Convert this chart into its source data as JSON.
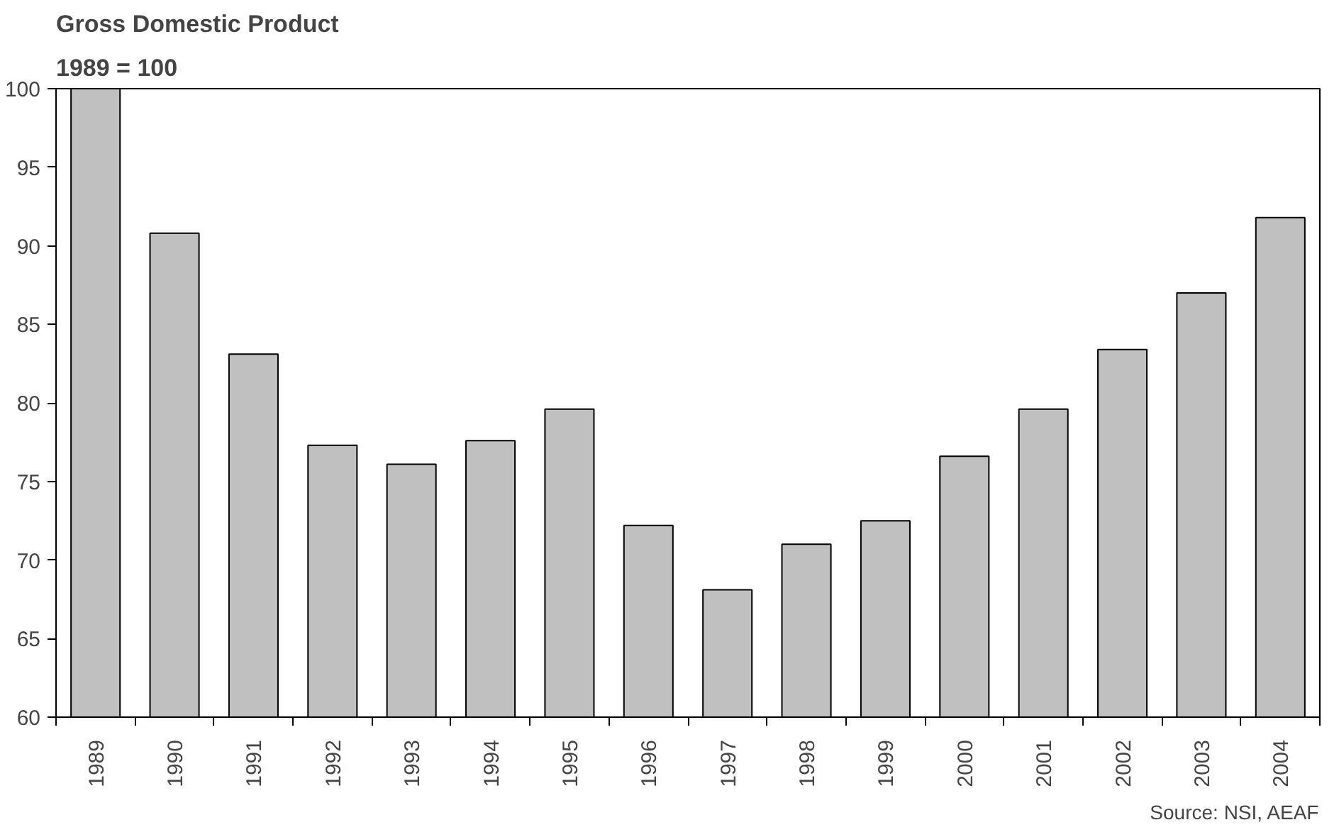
{
  "chart_data": {
    "type": "bar",
    "title": "Gross Domestic Product",
    "subtitle": "1989 = 100",
    "categories": [
      "1989",
      "1990",
      "1991",
      "1992",
      "1993",
      "1994",
      "1995",
      "1996",
      "1997",
      "1998",
      "1999",
      "2000",
      "2001",
      "2002",
      "2003",
      "2004"
    ],
    "values": [
      100,
      90.8,
      83.1,
      77.3,
      76.1,
      77.6,
      79.6,
      72.2,
      68.1,
      71.0,
      72.5,
      76.6,
      79.6,
      83.4,
      87.0,
      91.8
    ],
    "color": "#c0c0c0",
    "ylim": [
      60,
      100
    ],
    "yticks": [
      60,
      65,
      70,
      75,
      80,
      85,
      90,
      95,
      100
    ],
    "annotations": [
      "Source: NSI, AEAF"
    ]
  }
}
